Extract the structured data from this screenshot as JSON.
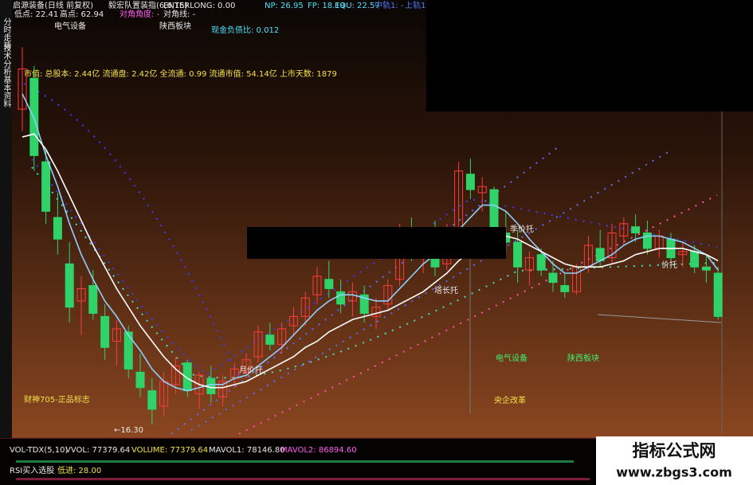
{
  "sidebar": [
    "分时走势",
    "技术分析",
    "基本资料"
  ],
  "header": {
    "title": "启源装备(日线 前复权)",
    "indicator": "毅宏队置装指(6,6,15)",
    "enterlong": "ENTERLONG: 0.00",
    "np": "NP: 26.95",
    "fp": "FP: 18.19",
    "equ": "EQU: 22.57",
    "mid": "中轨1: -",
    "upper": "上轨1",
    "low": "低点: 22.41",
    "high": "高点: 62.94",
    "angle": "对角角度: -",
    "diagonal": "对角线: -"
  },
  "info": {
    "sector": "电气设备",
    "region": "陕西板块",
    "debt_ratio": "现金负债比: 0.012",
    "market_cap": "市值: 总股本: 2.44亿 流通盘: 2.42亿 全流通: 0.99 流通市值: 54.14亿 上市天数: 1879"
  },
  "annotations": [
    "季价托",
    "月价托",
    "塔长托",
    "价托",
    "财神705-正品标志",
    "←16.30",
    "电气设备",
    "陕西板块",
    "央企改革"
  ],
  "volume": {
    "name": "VOL-TDX(5,10)",
    "vvol": "VVOL: 77379.64",
    "volume": "VOLUME: 77379.64",
    "mavol1": "MAVOL1: 78146.80",
    "mavol2": "MAVOL2: 86894.60",
    "rsi": "RSI买入选股",
    "rsi_value": "低进: 28.00"
  },
  "watermark": {
    "title": "指标公式网",
    "url": "www.zbgs3.com"
  },
  "chart_data": {
    "type": "candlestick",
    "ylim": [
      16,
      29
    ],
    "up_color": "#ff3b3b",
    "down_color": "#2fd36a",
    "candles": [
      [
        26.5,
        28.5,
        25.8,
        27.8
      ],
      [
        27.5,
        27.9,
        24.5,
        25.0
      ],
      [
        24.8,
        25.2,
        22.8,
        23.2
      ],
      [
        23.0,
        23.8,
        21.8,
        22.3
      ],
      [
        21.5,
        22.2,
        19.6,
        20.1
      ],
      [
        20.3,
        21.1,
        19.2,
        20.7
      ],
      [
        20.8,
        21.3,
        19.7,
        19.9
      ],
      [
        19.8,
        20.2,
        18.4,
        18.8
      ],
      [
        19.0,
        19.7,
        18.2,
        19.4
      ],
      [
        19.3,
        19.5,
        17.8,
        18.1
      ],
      [
        18.0,
        18.6,
        17.2,
        17.5
      ],
      [
        17.4,
        17.8,
        16.3,
        16.8
      ],
      [
        16.9,
        18.0,
        16.6,
        17.7
      ],
      [
        17.6,
        18.5,
        17.3,
        18.2
      ],
      [
        18.3,
        18.4,
        17.2,
        17.4
      ],
      [
        17.3,
        18.0,
        16.8,
        17.9
      ],
      [
        17.8,
        18.2,
        17.0,
        17.3
      ],
      [
        17.2,
        17.9,
        16.9,
        17.7
      ],
      [
        17.8,
        18.3,
        17.5,
        18.1
      ],
      [
        18.0,
        18.6,
        17.8,
        18.4
      ],
      [
        18.5,
        19.5,
        18.3,
        19.3
      ],
      [
        19.2,
        19.6,
        18.7,
        18.9
      ],
      [
        18.9,
        19.6,
        18.6,
        19.4
      ],
      [
        19.5,
        20.1,
        19.2,
        19.8
      ],
      [
        19.8,
        20.6,
        19.5,
        20.4
      ],
      [
        20.5,
        21.4,
        20.2,
        21.1
      ],
      [
        21.0,
        21.6,
        20.4,
        20.7
      ],
      [
        20.6,
        21.0,
        19.9,
        20.2
      ],
      [
        20.3,
        20.9,
        19.8,
        20.6
      ],
      [
        20.5,
        20.8,
        19.6,
        19.9
      ],
      [
        19.8,
        20.4,
        19.4,
        20.1
      ],
      [
        20.2,
        21.0,
        20.0,
        20.8
      ],
      [
        21.0,
        22.8,
        20.8,
        22.5
      ],
      [
        22.4,
        23.0,
        21.6,
        21.9
      ],
      [
        22.0,
        22.6,
        21.2,
        22.3
      ],
      [
        22.4,
        22.9,
        21.1,
        21.4
      ],
      [
        21.5,
        22.8,
        21.3,
        22.6
      ],
      [
        22.6,
        24.8,
        22.4,
        24.5
      ],
      [
        24.4,
        24.9,
        23.6,
        23.9
      ],
      [
        23.8,
        24.3,
        23.2,
        24.0
      ],
      [
        23.9,
        24.0,
        22.3,
        22.6
      ],
      [
        22.5,
        23.2,
        21.9,
        22.2
      ],
      [
        22.2,
        22.6,
        20.9,
        21.4
      ],
      [
        21.3,
        21.9,
        20.8,
        21.7
      ],
      [
        21.8,
        22.0,
        21.1,
        21.3
      ],
      [
        21.2,
        21.6,
        20.6,
        20.9
      ],
      [
        20.8,
        21.2,
        20.4,
        20.6
      ],
      [
        20.6,
        21.5,
        20.5,
        21.4
      ],
      [
        21.4,
        22.4,
        21.2,
        22.1
      ],
      [
        22.0,
        22.6,
        21.4,
        21.6
      ],
      [
        21.7,
        22.8,
        21.5,
        22.5
      ],
      [
        22.4,
        23.0,
        22.1,
        22.8
      ],
      [
        22.7,
        23.1,
        22.2,
        22.5
      ],
      [
        22.5,
        22.9,
        21.8,
        22.0
      ],
      [
        22.0,
        22.6,
        21.7,
        22.4
      ],
      [
        22.3,
        22.5,
        21.5,
        21.7
      ],
      [
        21.8,
        22.2,
        21.4,
        21.9
      ],
      [
        21.9,
        22.1,
        21.2,
        21.4
      ],
      [
        21.4,
        21.8,
        20.9,
        21.3
      ],
      [
        21.2,
        21.4,
        19.7,
        19.8
      ]
    ],
    "lines": [
      {
        "color": "#8fd0ff",
        "values": [
          27.0,
          26.2,
          25.0,
          24.0,
          22.8,
          21.8,
          21.0,
          20.3,
          19.8,
          19.2,
          18.7,
          18.1,
          17.7,
          17.5,
          17.4,
          17.5,
          17.6,
          17.6,
          17.8,
          17.9,
          18.2,
          18.5,
          18.8,
          19.2,
          19.6,
          20.0,
          20.3,
          20.5,
          20.5,
          20.4,
          20.3,
          20.3,
          20.7,
          21.1,
          21.5,
          21.8,
          22.1,
          22.6,
          23.0,
          23.4,
          23.4,
          23.2,
          22.8,
          22.3,
          21.9,
          21.5,
          21.2,
          21.2,
          21.4,
          21.6,
          21.8,
          22.1,
          22.3,
          22.4,
          22.4,
          22.3,
          22.2,
          22.0,
          21.8,
          21.3
        ]
      },
      {
        "color": "#ffffff",
        "values": [
          25.6,
          25.7,
          25.2,
          24.5,
          23.7,
          22.9,
          22.1,
          21.4,
          20.7,
          20.1,
          19.5,
          19.0,
          18.5,
          18.1,
          17.8,
          17.6,
          17.5,
          17.5,
          17.6,
          17.7,
          17.9,
          18.1,
          18.3,
          18.5,
          18.8,
          19.0,
          19.3,
          19.5,
          19.7,
          19.8,
          19.9,
          20.0,
          20.2,
          20.4,
          20.6,
          20.9,
          21.2,
          21.6,
          21.9,
          22.2,
          22.4,
          22.4,
          22.3,
          22.1,
          21.9,
          21.7,
          21.5,
          21.4,
          21.4,
          21.4,
          21.5,
          21.6,
          21.8,
          21.9,
          22.0,
          22.0,
          22.0,
          21.9,
          21.8,
          21.6
        ]
      }
    ]
  }
}
